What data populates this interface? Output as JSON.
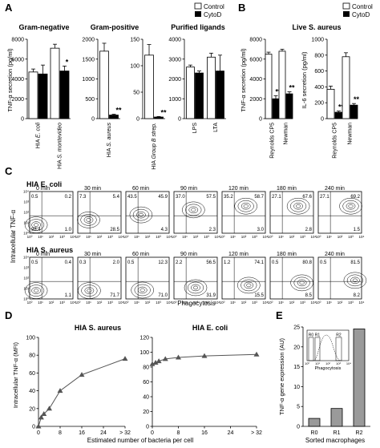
{
  "panel_letters": [
    "A",
    "B",
    "C",
    "D",
    "E"
  ],
  "legend": {
    "control": "Control",
    "cytod": "CytoD"
  },
  "axis_titles": {
    "tnf_secretion": "TNF-α secretion (pg/ml)",
    "il6_secretion": "IL-6 secretion (pg/ml)",
    "intracellular_tnf": "Intracellular TNF-α",
    "phagocytosis": "Phagocytosis",
    "intracellular_tnf_mfi": "Intracellular TNF-α (MFI)",
    "estimated_bacteria": "Estimated number of bacteria per cell",
    "tnf_gene_expression": "TNF-α gene expression (AU)",
    "sorted_macrophages": "Sorted macrophages"
  },
  "significance": {
    "double": "**",
    "single": "*"
  },
  "chart_data": [
    {
      "id": "A1",
      "type": "bar",
      "title": "Gram-negative",
      "categories": [
        "HIA E. coli",
        "HIA S. montevideo"
      ],
      "series": [
        {
          "name": "Control",
          "values": [
            4700,
            7100
          ],
          "errors": [
            300,
            400
          ]
        },
        {
          "name": "CytoD",
          "values": [
            4500,
            4800
          ],
          "errors": [
            900,
            500
          ]
        }
      ],
      "ylim": [
        0,
        8000
      ],
      "yticks": [
        0,
        2000,
        4000,
        6000,
        8000
      ],
      "stars": [
        null,
        "*"
      ]
    },
    {
      "id": "A2",
      "type": "bar",
      "title": "Gram-positive",
      "categories": [
        "HIA S. aureus",
        "HIA Group B strep."
      ],
      "subplots": [
        {
          "category": "HIA S. aureus",
          "ylim": [
            0,
            2000
          ],
          "yticks": [
            0,
            500,
            1000,
            1500,
            2000
          ],
          "series": [
            {
              "name": "Control",
              "value": 1700,
              "error": 200
            },
            {
              "name": "CytoD",
              "value": 90,
              "error": 20
            }
          ],
          "stars": "**"
        },
        {
          "category": "HIA Group B strep.",
          "ylim": [
            0,
            150
          ],
          "yticks": [
            0,
            50,
            100,
            150
          ],
          "series": [
            {
              "name": "Control",
              "value": 120,
              "error": 20
            },
            {
              "name": "CytoD",
              "value": 3,
              "error": 1
            }
          ],
          "stars": "**"
        }
      ]
    },
    {
      "id": "A3",
      "type": "bar",
      "title": "Purified ligands",
      "categories": [
        "LPS",
        "LTA"
      ],
      "series": [
        {
          "name": "Control",
          "values": [
            2600,
            3100
          ],
          "errors": [
            100,
            200
          ]
        },
        {
          "name": "CytoD",
          "values": [
            2300,
            2400
          ],
          "errors": [
            100,
            800
          ]
        }
      ],
      "ylim": [
        0,
        4000
      ],
      "yticks": [
        0,
        1000,
        2000,
        3000,
        4000
      ]
    },
    {
      "id": "B1",
      "type": "bar",
      "title": "Live S. aureus",
      "categories": [
        "Reynolds CP5",
        "Newman"
      ],
      "series": [
        {
          "name": "Control",
          "values": [
            6500,
            6800
          ],
          "errors": [
            200,
            200
          ]
        },
        {
          "name": "CytoD",
          "values": [
            2000,
            2500
          ],
          "errors": [
            300,
            200
          ]
        }
      ],
      "ylim": [
        0,
        8000
      ],
      "yticks": [
        0,
        2000,
        4000,
        6000,
        8000
      ],
      "stars": [
        "**",
        "**"
      ]
    },
    {
      "id": "B2",
      "type": "bar",
      "categories": [
        "Reynolds CP5",
        "Newman"
      ],
      "series": [
        {
          "name": "Control",
          "values": [
            370,
            780
          ],
          "errors": [
            40,
            50
          ]
        },
        {
          "name": "CytoD",
          "values": [
            80,
            170
          ],
          "errors": [
            15,
            20
          ]
        }
      ],
      "ylim": [
        0,
        1000
      ],
      "yticks": [
        0,
        200,
        400,
        600,
        800,
        1000
      ],
      "stars": [
        "**",
        "**"
      ]
    },
    {
      "id": "C",
      "type": "contour",
      "rows": [
        {
          "label": "HIA E. coli",
          "plots": [
            {
              "time": "0 min",
              "quadrants": [
                "0.5",
                "0.2",
                "98.4",
                "1.0"
              ]
            },
            {
              "time": "30 min",
              "quadrants": [
                "7.3",
                "5.4",
                "",
                "28.5"
              ]
            },
            {
              "time": "60 min",
              "quadrants": [
                "43.5",
                "45.9",
                "",
                "4.3"
              ]
            },
            {
              "time": "90 min",
              "quadrants": [
                "37.0",
                "57.5",
                "",
                "2.3"
              ]
            },
            {
              "time": "120 min",
              "quadrants": [
                "35.2",
                "58.7",
                "",
                "3.0"
              ]
            },
            {
              "time": "180 min",
              "quadrants": [
                "27.1",
                "67.6",
                "",
                "2.8"
              ]
            },
            {
              "time": "240 min",
              "quadrants": [
                "27.1",
                "69.2",
                "",
                "1.5"
              ]
            }
          ]
        },
        {
          "label": "HIA S. aureus",
          "plots": [
            {
              "time": "0 min",
              "quadrants": [
                "0.5",
                "0.4",
                "",
                "1.1"
              ]
            },
            {
              "time": "30 min",
              "quadrants": [
                "0.3",
                "2.0",
                "",
                "71.7"
              ]
            },
            {
              "time": "60 min",
              "quadrants": [
                "0.5",
                "12.3",
                "",
                "71.0"
              ]
            },
            {
              "time": "90 min",
              "quadrants": [
                "2.2",
                "56.5",
                "",
                "31.9"
              ]
            },
            {
              "time": "120 min",
              "quadrants": [
                "1.2",
                "74.1",
                "",
                "15.5"
              ]
            },
            {
              "time": "180 min",
              "quadrants": [
                "0.5",
                "80.8",
                "",
                "8.5"
              ]
            },
            {
              "time": "240 min",
              "quadrants": [
                "0.5",
                "81.5",
                "",
                "8.2"
              ]
            }
          ]
        }
      ],
      "tick_labels": [
        "10⁰",
        "10¹",
        "10²",
        "10³",
        "10⁴"
      ]
    },
    {
      "id": "D1",
      "type": "line",
      "title": "HIA S. aureus",
      "x": [
        0,
        1,
        2,
        4,
        8,
        16,
        32
      ],
      "y": [
        0,
        10,
        14,
        20,
        40,
        58,
        76
      ],
      "xticks": [
        "0",
        "8",
        "16",
        "24",
        "> 32"
      ],
      "xtick_values": [
        0,
        8,
        16,
        24,
        32
      ],
      "ylim": [
        0,
        100
      ],
      "yticks": [
        0,
        20,
        40,
        60,
        80,
        100
      ]
    },
    {
      "id": "D2",
      "type": "line",
      "title": "HIA E. coli",
      "x": [
        0,
        1,
        2,
        4,
        8,
        16,
        32
      ],
      "y": [
        84,
        86,
        88,
        91,
        93,
        95,
        97
      ],
      "xticks": [
        "0",
        "8",
        "16",
        "24",
        "> 32"
      ],
      "xtick_values": [
        0,
        8,
        16,
        24,
        32
      ],
      "ylim": [
        0,
        120
      ],
      "yticks": [
        0,
        20,
        40,
        60,
        80,
        100,
        120
      ]
    },
    {
      "id": "E",
      "type": "bar",
      "categories": [
        "R0",
        "R1",
        "R2"
      ],
      "values": [
        2,
        4.5,
        24.5
      ],
      "ylim": [
        0,
        25
      ],
      "yticks": [
        0,
        5,
        10,
        15,
        20,
        25
      ],
      "inset": {
        "xlabel": "Phagocytosis",
        "regions": [
          "R0",
          "R1",
          "R2"
        ],
        "ticks": [
          "10⁰",
          "10¹",
          "10²",
          "10³",
          "10⁴"
        ]
      }
    }
  ]
}
